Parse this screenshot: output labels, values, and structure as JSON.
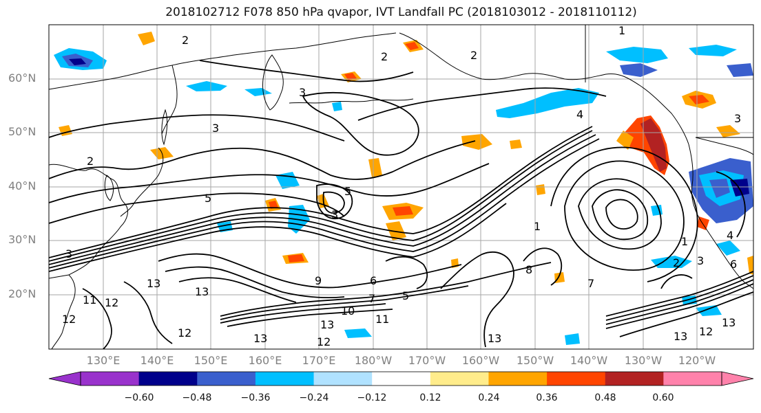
{
  "title": "2018102712 F078 850 hPa qvapor, IVT Landfall PC (2018103012 - 2018110112)",
  "lat_labels": [
    "60°N",
    "50°N",
    "40°N",
    "30°N",
    "20°N"
  ],
  "lon_labels": [
    "130°E",
    "140°E",
    "150°E",
    "160°E",
    "170°E",
    "180°W",
    "170°W",
    "160°W",
    "150°W",
    "140°W",
    "130°W",
    "120°W"
  ],
  "colorbar": {
    "colors": [
      "#9932CC",
      "#00008B",
      "#3A5FCD",
      "#00BFFF",
      "#B0E2FF",
      "#FFFFFF",
      "#FFEC8B",
      "#FFA500",
      "#FF4500",
      "#B22222",
      "#FF82AB"
    ],
    "ticks": [
      "−0.60",
      "−0.48",
      "−0.36",
      "−0.24",
      "−0.12",
      "0.12",
      "0.24",
      "0.36",
      "0.48",
      "0.60"
    ]
  },
  "contour_labels": [
    "2",
    "3",
    "2",
    "3",
    "4",
    "1",
    "5",
    "5",
    "3",
    "3",
    "2",
    "1",
    "9",
    "6",
    "7",
    "5",
    "8",
    "7",
    "2",
    "3",
    "11",
    "12",
    "12",
    "13",
    "12",
    "13",
    "10",
    "12",
    "11",
    "13",
    "12",
    "13",
    "13",
    "13",
    "13",
    "1",
    "3",
    "4",
    "6",
    "2"
  ]
}
